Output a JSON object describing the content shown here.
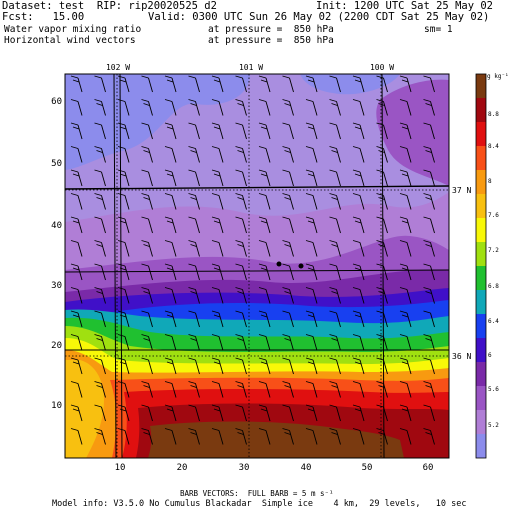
{
  "header": {
    "dataset": "Dataset: test  RIP: rip20020525 d2",
    "init": "Init: 1200 UTC Sat 25 May 02",
    "fcst": "Fcst:   15.00",
    "valid": "Valid: 0300 UTC Sun 26 May 02 (2200 CDT Sat 25 May 02)",
    "field1_name": "Water vapor mixing ratio",
    "field1_level": "at pressure =  850 hPa",
    "field1_sm": "sm= 1",
    "field2_name": "Horizontal wind vectors",
    "field2_level": "at pressure =  850 hPa"
  },
  "map": {
    "lon_labels": [
      "102 W",
      "101 W",
      "100 W"
    ],
    "lat_labels": [
      "37 N",
      "36 N"
    ],
    "x_ticks": [
      "10",
      "20",
      "30",
      "40",
      "50",
      "60"
    ],
    "y_ticks": [
      "10",
      "20",
      "30",
      "40",
      "50",
      "60"
    ],
    "colorbar_unit": "g kg⁻¹",
    "colorbar_labels": [
      "8.8",
      "8.4",
      "8",
      "7.6",
      "7.2",
      "6.8",
      "6.4",
      "6",
      "5.6",
      "5.2"
    ],
    "colors": {
      "lt_purple": "#8c8cec",
      "lavender": "#a98ee0",
      "violet": "#b07ed6",
      "purple": "#9a55c4",
      "dk_purple": "#7a2aa8",
      "indigo": "#4010c8",
      "blue": "#1840f0",
      "cyan": "#10a8b8",
      "green": "#20c030",
      "lime": "#a0e010",
      "yellow": "#f8f808",
      "orange": "#f89a10",
      "red_orange": "#f85018",
      "red": "#e01010",
      "dk_red": "#a00810",
      "brown": "#7a3a10"
    }
  },
  "footer": {
    "barb": "BARB VECTORS:  FULL BARB = 5 m s⁻¹",
    "model": "Model info: V3.5.0 No Cumulus Blackadar  Simple ice    4 km,  29 levels,   10 sec"
  }
}
